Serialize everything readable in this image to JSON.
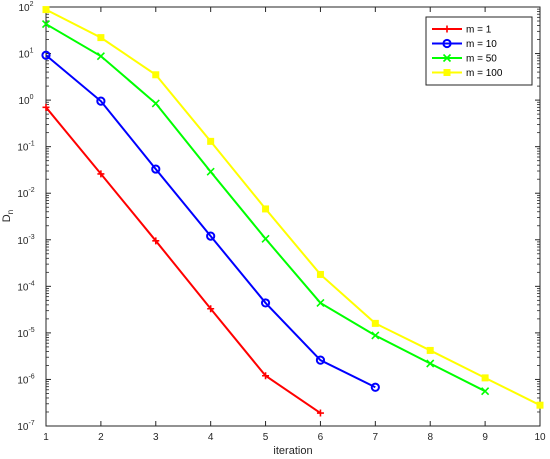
{
  "chart_data": {
    "type": "line",
    "xlabel": "iteration",
    "ylabel": "D",
    "ylabel_subscript": "n",
    "xlim": [
      1,
      10
    ],
    "ylim": [
      1e-07,
      100
    ],
    "yscale": "log",
    "x_ticks": [
      1,
      2,
      3,
      4,
      5,
      6,
      7,
      8,
      9,
      10
    ],
    "y_ticks": [
      {
        "exp": -7,
        "label_base": "10",
        "label_exp": "-7"
      },
      {
        "exp": -6,
        "label_base": "10",
        "label_exp": "-6"
      },
      {
        "exp": -5,
        "label_base": "10",
        "label_exp": "-5"
      },
      {
        "exp": -4,
        "label_base": "10",
        "label_exp": "-4"
      },
      {
        "exp": -3,
        "label_base": "10",
        "label_exp": "-3"
      },
      {
        "exp": -2,
        "label_base": "10",
        "label_exp": "-2"
      },
      {
        "exp": -1,
        "label_base": "10",
        "label_exp": "-1"
      },
      {
        "exp": 0,
        "label_base": "10",
        "label_exp": "0"
      },
      {
        "exp": 1,
        "label_base": "10",
        "label_exp": "1"
      },
      {
        "exp": 2,
        "label_base": "10",
        "label_exp": "2"
      }
    ],
    "grid": false,
    "legend_position": "top-right",
    "series": [
      {
        "name": "m = 1",
        "color": "#ff0000",
        "marker": "plus",
        "x": [
          1,
          2,
          3,
          4,
          5,
          6
        ],
        "y": [
          0.7,
          0.026,
          0.00095,
          3.3e-05,
          1.2e-06,
          1.9e-07
        ]
      },
      {
        "name": "m = 10",
        "color": "#0000ff",
        "marker": "circle",
        "x": [
          1,
          2,
          3,
          4,
          5,
          6,
          7
        ],
        "y": [
          9.2,
          0.95,
          0.033,
          0.0012,
          4.4e-05,
          2.6e-06,
          6.8e-07
        ]
      },
      {
        "name": "m = 50",
        "color": "#00ff00",
        "marker": "x",
        "x": [
          1,
          2,
          3,
          4,
          5,
          6,
          7,
          8,
          9
        ],
        "y": [
          43,
          8.8,
          0.85,
          0.029,
          0.00105,
          4.4e-05,
          8.8e-06,
          2.2e-06,
          5.6e-07
        ]
      },
      {
        "name": "m = 100",
        "color": "#ffff00",
        "marker": "square",
        "x": [
          1,
          2,
          3,
          4,
          5,
          6,
          7,
          8,
          9,
          10
        ],
        "y": [
          88,
          22,
          3.5,
          0.13,
          0.0046,
          0.00018,
          1.6e-05,
          4.2e-06,
          1.08e-06,
          2.8e-07
        ]
      }
    ]
  }
}
